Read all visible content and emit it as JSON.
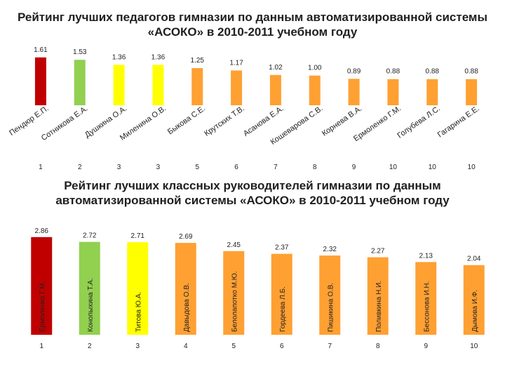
{
  "chart_data": [
    {
      "type": "bar",
      "title": "Рейтинг лучших педагогов гимназии по данным автоматизированной системы «АСОКО» в 2010-2011 учебном году",
      "categories": [
        "Пендюр Е.П.",
        "Сотникова Е.А.",
        "Душкина О.А.",
        "Миленина О.В.",
        "Быкова С.Е.",
        "Крутских Т.В.",
        "Асанова Е.А.",
        "Кошеварова С.В.",
        "Корнева В.А.",
        "Ермоленко Г.М.",
        "Голубева Л.С.",
        "Гагарина Е.Е."
      ],
      "values": [
        1.61,
        1.53,
        1.36,
        1.36,
        1.25,
        1.17,
        1.02,
        1.0,
        0.89,
        0.88,
        0.88,
        0.88
      ],
      "value_labels": [
        "1.61",
        "1.53",
        "1.36",
        "1.36",
        "1.25",
        "1.17",
        "1.02",
        "1.00",
        "0.89",
        "0.88",
        "0.88",
        "0.88"
      ],
      "ranks": [
        "1",
        "2",
        "3",
        "3",
        "5",
        "6",
        "7",
        "8",
        "9",
        "10",
        "10",
        "10"
      ],
      "colors": [
        "#c00000",
        "#92d050",
        "#ffff00",
        "#ffff00",
        "#ffa033",
        "#ffa033",
        "#ffa033",
        "#ffa033",
        "#ffa033",
        "#ffa033",
        "#ffa033",
        "#ffa033"
      ],
      "ylim": [
        0,
        1.7
      ],
      "grid": false
    },
    {
      "type": "bar",
      "title": "Рейтинг лучших классных руководителей гимназии по данным автоматизированной системы «АСОКО» в 2010-2011 учебном году",
      "categories": [
        "Ермоленко Г.М.",
        "Конопыхина Т.А.",
        "Титова Ю.А.",
        "Давыдова О.В.",
        "Белолапотко М.Ю.",
        "Гордеева Л.Б.",
        "Пишикина О.В.",
        "Поливкина Н.И.",
        "Бессонова И.Н.",
        "Дымова И.Ф."
      ],
      "values": [
        2.86,
        2.72,
        2.71,
        2.69,
        2.45,
        2.37,
        2.32,
        2.27,
        2.13,
        2.04
      ],
      "value_labels": [
        "2.86",
        "2.72",
        "2.71",
        "2.69",
        "2.45",
        "2.37",
        "2.32",
        "2.27",
        "2.13",
        "2.04"
      ],
      "ranks": [
        "1",
        "2",
        "3",
        "4",
        "5",
        "6",
        "7",
        "8",
        "9",
        "10"
      ],
      "colors": [
        "#c00000",
        "#92d050",
        "#ffff00",
        "#ffa033",
        "#ffa033",
        "#ffa033",
        "#ffa033",
        "#ffa033",
        "#ffa033",
        "#ffa033"
      ],
      "ylim": [
        0,
        3.0
      ],
      "grid": false
    }
  ]
}
